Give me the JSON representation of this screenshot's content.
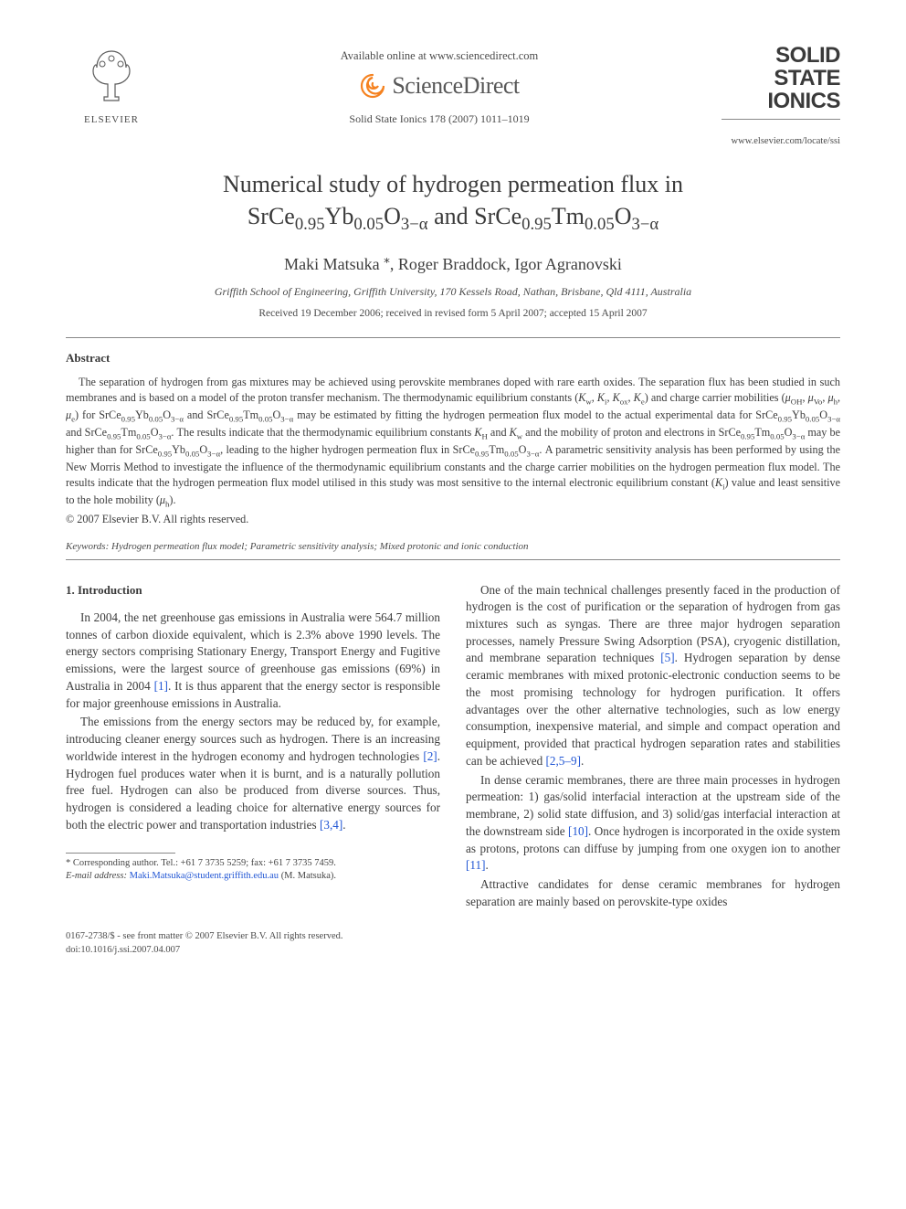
{
  "header": {
    "elsevier_label": "ELSEVIER",
    "available_line": "Available online at www.sciencedirect.com",
    "sd_label": "ScienceDirect",
    "journal_citation": "Solid State Ionics 178 (2007) 1011–1019",
    "journal_name_l1": "SOLID",
    "journal_name_l2": "STATE",
    "journal_name_l3": "IONICS",
    "journal_url": "www.elsevier.com/locate/ssi"
  },
  "title_l1": "Numerical study of hydrogen permeation flux in",
  "title_l2_html": "SrCe<sub>0.95</sub>Yb<sub>0.05</sub>O<sub>3−α</sub> and SrCe<sub>0.95</sub>Tm<sub>0.05</sub>O<sub>3−α</sub>",
  "authors": "Maki Matsuka *, Roger Braddock, Igor Agranovski",
  "affiliation": "Griffith School of Engineering, Griffith University, 170 Kessels Road, Nathan, Brisbane, Qld 4111, Australia",
  "dates": "Received 19 December 2006; received in revised form 5 April 2007; accepted 15 April 2007",
  "abstract_heading": "Abstract",
  "abstract_html": "The separation of hydrogen from gas mixtures may be achieved using perovskite membranes doped with rare earth oxides. The separation flux has been studied in such membranes and is based on a model of the proton transfer mechanism. The thermodynamic equilibrium constants (<i>K</i><sub>w</sub>, <i>K</i><sub>i</sub>, <i>K</i><sub>ox</sub>, <i>K</i><sub>e</sub>) and charge carrier mobilities (<i>μ</i><sub>OH</sub>, <i>μ</i><sub>Vo</sub>, <i>μ</i><sub>h</sub>, <i>μ</i><sub>e</sub>) for SrCe<sub>0.95</sub>Yb<sub>0.05</sub>O<sub>3−α</sub> and SrCe<sub>0.95</sub>Tm<sub>0.05</sub>O<sub>3−α</sub> may be estimated by fitting the hydrogen permeation flux model to the actual experimental data for SrCe<sub>0.95</sub>Yb<sub>0.05</sub>O<sub>3−α</sub> and SrCe<sub>0.95</sub>Tm<sub>0.05</sub>O<sub>3−α</sub>. The results indicate that the thermodynamic equilibrium constants <i>K</i><sub>H</sub> and <i>K</i><sub>w</sub> and the mobility of proton and electrons in SrCe<sub>0.95</sub>Tm<sub>0.05</sub>O<sub>3−α</sub> may be higher than for SrCe<sub>0.95</sub>Yb<sub>0.05</sub>O<sub>3−α</sub>, leading to the higher hydrogen permeation flux in SrCe<sub>0.95</sub>Tm<sub>0.05</sub>O<sub>3−α</sub>. A parametric sensitivity analysis has been performed by using the New Morris Method to investigate the influence of the thermodynamic equilibrium constants and the charge carrier mobilities on the hydrogen permeation flux model. The results indicate that the hydrogen permeation flux model utilised in this study was most sensitive to the internal electronic equilibrium constant (<i>K</i><sub>i</sub>) value and least sensitive to the hole mobility (<i>μ</i><sub>h</sub>).",
  "copyright": "© 2007 Elsevier B.V. All rights reserved.",
  "keywords_label": "Keywords:",
  "keywords_text": "Hydrogen permeation flux model; Parametric sensitivity analysis; Mixed protonic and ionic conduction",
  "section1_heading": "1. Introduction",
  "col_left": [
    "In 2004, the net greenhouse gas emissions in Australia were 564.7 million tonnes of carbon dioxide equivalent, which is 2.3% above 1990 levels. The energy sectors comprising Stationary Energy, Transport Energy and Fugitive emissions, were the largest source of greenhouse gas emissions (69%) in Australia in 2004 <span class=\"ref\">[1]</span>. It is thus apparent that the energy sector is responsible for major greenhouse emissions in Australia.",
    "The emissions from the energy sectors may be reduced by, for example, introducing cleaner energy sources such as hydrogen. There is an increasing worldwide interest in the hydrogen economy and hydrogen technologies <span class=\"ref\">[2]</span>. Hydrogen fuel produces water when it is burnt, and is a naturally pollution free fuel. Hydrogen can also be produced from diverse sources. Thus, hydrogen is considered a leading choice for alternative energy sources for both the electric power and transportation industries <span class=\"ref\">[3,4]</span>."
  ],
  "col_right": [
    "One of the main technical challenges presently faced in the production of hydrogen is the cost of purification or the separation of hydrogen from gas mixtures such as syngas. There are three major hydrogen separation processes, namely Pressure Swing Adsorption (PSA), cryogenic distillation, and membrane separation techniques <span class=\"ref\">[5]</span>. Hydrogen separation by dense ceramic membranes with mixed protonic-electronic conduction seems to be the most promising technology for hydrogen purification. It offers advantages over the other alternative technologies, such as low energy consumption, inexpensive material, and simple and compact operation and equipment, provided that practical hydrogen separation rates and stabilities can be achieved <span class=\"ref\">[2,5–9]</span>.",
    "In dense ceramic membranes, there are three main processes in hydrogen permeation: 1) gas/solid interfacial interaction at the upstream side of the membrane, 2) solid state diffusion, and 3) solid/gas interfacial interaction at the downstream side <span class=\"ref\">[10]</span>. Once hydrogen is incorporated in the oxide system as protons, protons can diffuse by jumping from one oxygen ion to another <span class=\"ref\">[11]</span>.",
    "Attractive candidates for dense ceramic membranes for hydrogen separation are mainly based on perovskite-type oxides"
  ],
  "footnote": {
    "corr": "* Corresponding author. Tel.: +61 7 3735 5259; fax: +61 7 3735 7459.",
    "email_label": "E-mail address:",
    "email": "Maki.Matsuka@student.griffith.edu.au",
    "email_tail": "(M. Matsuka)."
  },
  "footer": {
    "left_l1": "0167-2738/$ - see front matter © 2007 Elsevier B.V. All rights reserved.",
    "left_l2": "doi:10.1016/j.ssi.2007.04.007"
  },
  "colors": {
    "text": "#3a3a3a",
    "link": "#2156d4",
    "rule": "#888888",
    "elsevier_orange": "#e77817",
    "sd_orange": "#f58220"
  }
}
